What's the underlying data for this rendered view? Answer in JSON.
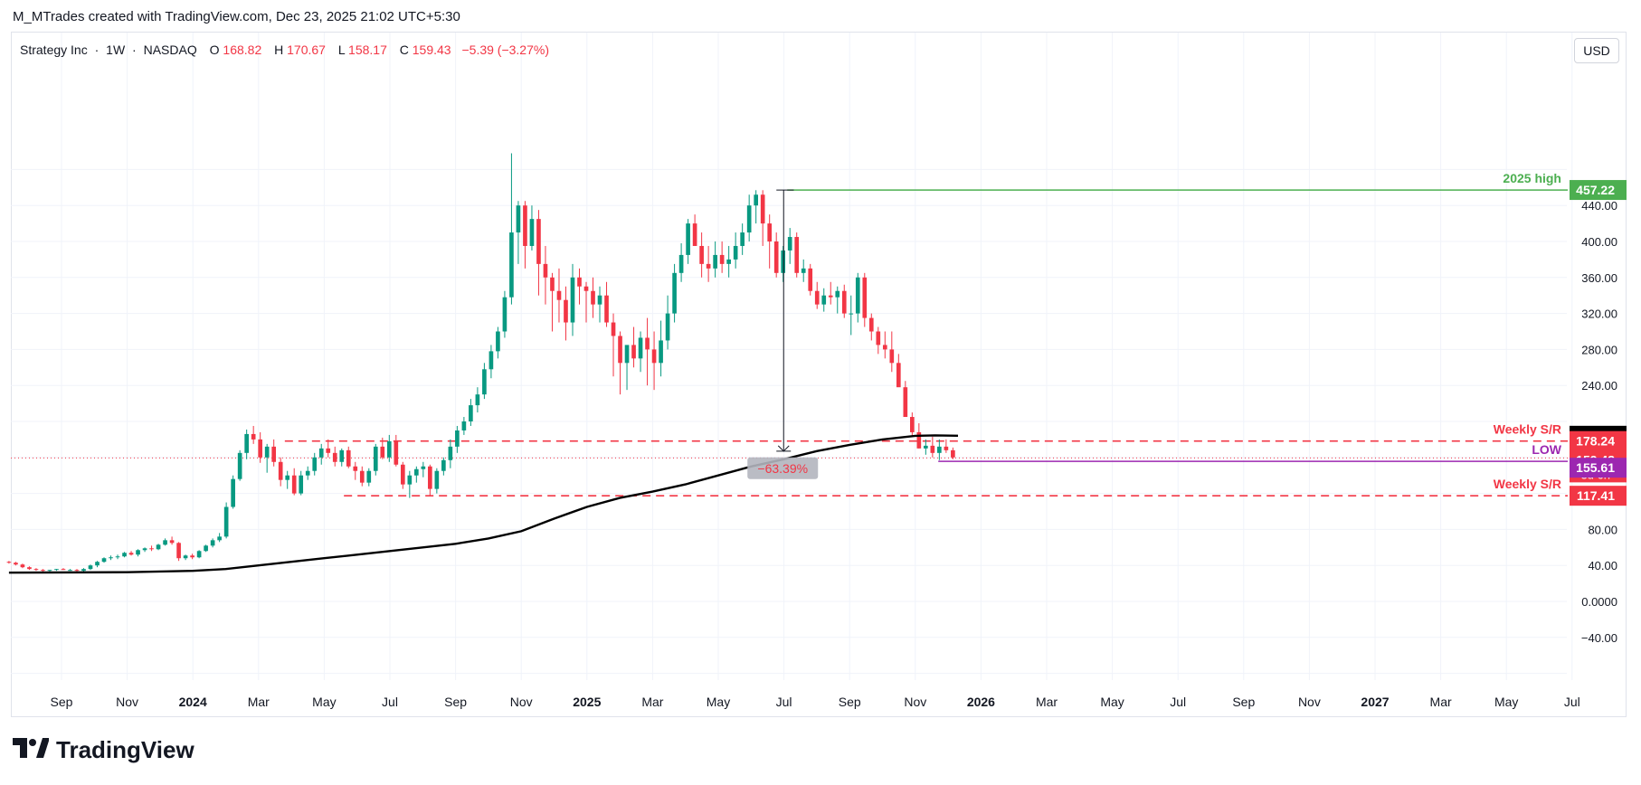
{
  "attribution": "M_MTrades created with TradingView.com, Dec 23, 2025 21:02 UTC+5:30",
  "symbol": {
    "name": "Strategy Inc",
    "sep1": "·",
    "interval": "1W",
    "sep2": "·",
    "exchange": "NASDAQ"
  },
  "ohlc": {
    "o_label": "O",
    "o": "168.82",
    "h_label": "H",
    "h": "170.67",
    "l_label": "L",
    "l": "158.17",
    "c_label": "C",
    "c": "159.43",
    "change": "−5.39 (−3.27%)"
  },
  "currency": "USD",
  "logo_text": "TradingView",
  "colors": {
    "up": "#089981",
    "down": "#f23645",
    "ma": "#000000",
    "high_line": "#4caf50",
    "low_line": "#9c27b0",
    "sr": "#f23645"
  },
  "chart_data": {
    "type": "candlestick",
    "y_ticks": [
      "440.00",
      "400.00",
      "360.00",
      "320.00",
      "280.00",
      "240.00",
      "80.00",
      "40.00",
      "0.0000",
      "−40.00"
    ],
    "y_tick_values": [
      440,
      400,
      360,
      320,
      280,
      240,
      80,
      40,
      0,
      -40
    ],
    "x_ticks": [
      {
        "label": "Sep",
        "t": 0.0,
        "bold": false
      },
      {
        "label": "Nov",
        "t": 2.0,
        "bold": false
      },
      {
        "label": "2024",
        "t": 4.0,
        "bold": true
      },
      {
        "label": "Mar",
        "t": 6.0,
        "bold": false
      },
      {
        "label": "May",
        "t": 8.0,
        "bold": false
      },
      {
        "label": "Jul",
        "t": 10.0,
        "bold": false
      },
      {
        "label": "Sep",
        "t": 12.0,
        "bold": false
      },
      {
        "label": "Nov",
        "t": 14.0,
        "bold": false
      },
      {
        "label": "2025",
        "t": 16.0,
        "bold": true
      },
      {
        "label": "Mar",
        "t": 18.0,
        "bold": false
      },
      {
        "label": "May",
        "t": 20.0,
        "bold": false
      },
      {
        "label": "Jul",
        "t": 22.0,
        "bold": false
      },
      {
        "label": "Sep",
        "t": 24.0,
        "bold": false
      },
      {
        "label": "Nov",
        "t": 26.0,
        "bold": false
      },
      {
        "label": "2026",
        "t": 28.0,
        "bold": true
      },
      {
        "label": "Mar",
        "t": 30.0,
        "bold": false
      },
      {
        "label": "May",
        "t": 32.0,
        "bold": false
      },
      {
        "label": "Jul",
        "t": 34.0,
        "bold": false
      },
      {
        "label": "Sep",
        "t": 36.0,
        "bold": false
      },
      {
        "label": "Nov",
        "t": 38.0,
        "bold": false
      },
      {
        "label": "2027",
        "t": 40.0,
        "bold": true
      },
      {
        "label": "Mar",
        "t": 42.0,
        "bold": false
      },
      {
        "label": "May",
        "t": 44.0,
        "bold": false
      },
      {
        "label": "Jul",
        "t": 46.0,
        "bold": false
      }
    ],
    "candles_ohlc": [
      [
        44,
        45,
        42,
        43
      ],
      [
        43,
        44,
        40,
        41
      ],
      [
        41,
        42,
        37,
        38
      ],
      [
        38,
        39,
        35,
        36
      ],
      [
        36,
        37,
        34,
        35
      ],
      [
        35,
        36,
        33,
        34
      ],
      [
        34,
        35,
        33,
        35
      ],
      [
        35,
        36,
        34,
        36
      ],
      [
        36,
        37,
        35,
        35
      ],
      [
        35,
        36,
        34,
        35
      ],
      [
        35,
        36,
        33,
        34
      ],
      [
        34,
        37,
        33,
        36
      ],
      [
        36,
        41,
        35,
        40
      ],
      [
        40,
        45,
        38,
        44
      ],
      [
        44,
        49,
        43,
        48
      ],
      [
        48,
        51,
        46,
        49
      ],
      [
        49,
        52,
        47,
        50
      ],
      [
        50,
        55,
        49,
        54
      ],
      [
        54,
        56,
        51,
        52
      ],
      [
        52,
        58,
        50,
        57
      ],
      [
        57,
        60,
        55,
        59
      ],
      [
        59,
        62,
        56,
        58
      ],
      [
        58,
        64,
        57,
        63
      ],
      [
        63,
        70,
        62,
        68
      ],
      [
        68,
        72,
        63,
        65
      ],
      [
        65,
        66,
        45,
        48
      ],
      [
        48,
        52,
        46,
        51
      ],
      [
        51,
        53,
        47,
        49
      ],
      [
        49,
        57,
        48,
        56
      ],
      [
        56,
        63,
        55,
        62
      ],
      [
        62,
        70,
        60,
        68
      ],
      [
        68,
        76,
        66,
        72
      ],
      [
        72,
        110,
        70,
        105
      ],
      [
        105,
        140,
        103,
        136
      ],
      [
        136,
        168,
        134,
        165
      ],
      [
        165,
        191,
        158,
        186
      ],
      [
        186,
        195,
        175,
        180
      ],
      [
        180,
        188,
        154,
        160
      ],
      [
        160,
        175,
        143,
        172
      ],
      [
        172,
        180,
        150,
        155
      ],
      [
        155,
        160,
        128,
        135
      ],
      [
        135,
        145,
        125,
        140
      ],
      [
        140,
        148,
        118,
        120
      ],
      [
        120,
        145,
        118,
        140
      ],
      [
        140,
        150,
        135,
        145
      ],
      [
        145,
        165,
        140,
        160
      ],
      [
        160,
        175,
        152,
        170
      ],
      [
        170,
        180,
        160,
        165
      ],
      [
        165,
        172,
        150,
        155
      ],
      [
        155,
        170,
        150,
        168
      ],
      [
        168,
        172,
        148,
        150
      ],
      [
        150,
        155,
        135,
        145
      ],
      [
        145,
        150,
        128,
        132
      ],
      [
        132,
        148,
        128,
        145
      ],
      [
        145,
        175,
        140,
        172
      ],
      [
        172,
        182,
        158,
        160
      ],
      [
        160,
        185,
        155,
        178
      ],
      [
        178,
        185,
        150,
        152
      ],
      [
        152,
        155,
        125,
        130
      ],
      [
        130,
        145,
        115,
        140
      ],
      [
        140,
        150,
        132,
        147
      ],
      [
        147,
        155,
        138,
        150
      ],
      [
        150,
        152,
        118,
        125
      ],
      [
        125,
        148,
        120,
        145
      ],
      [
        145,
        160,
        140,
        157
      ],
      [
        157,
        180,
        148,
        172
      ],
      [
        172,
        195,
        165,
        190
      ],
      [
        190,
        205,
        185,
        200
      ],
      [
        200,
        225,
        195,
        218
      ],
      [
        218,
        238,
        210,
        230
      ],
      [
        230,
        265,
        225,
        258
      ],
      [
        258,
        285,
        248,
        278
      ],
      [
        278,
        305,
        270,
        300
      ],
      [
        300,
        345,
        293,
        338
      ],
      [
        338,
        498,
        330,
        410
      ],
      [
        410,
        445,
        375,
        440
      ],
      [
        440,
        445,
        370,
        395
      ],
      [
        395,
        440,
        390,
        425
      ],
      [
        425,
        435,
        340,
        375
      ],
      [
        375,
        395,
        330,
        360
      ],
      [
        360,
        365,
        300,
        345
      ],
      [
        345,
        370,
        310,
        335
      ],
      [
        335,
        350,
        290,
        310
      ],
      [
        310,
        375,
        295,
        360
      ],
      [
        360,
        370,
        330,
        350
      ],
      [
        350,
        355,
        310,
        345
      ],
      [
        345,
        360,
        315,
        330
      ],
      [
        330,
        350,
        310,
        340
      ],
      [
        340,
        355,
        305,
        310
      ],
      [
        310,
        320,
        250,
        295
      ],
      [
        295,
        300,
        230,
        265
      ],
      [
        265,
        280,
        235,
        285
      ],
      [
        285,
        305,
        260,
        270
      ],
      [
        270,
        300,
        255,
        293
      ],
      [
        293,
        315,
        240,
        280
      ],
      [
        280,
        300,
        235,
        265
      ],
      [
        265,
        312,
        250,
        290
      ],
      [
        290,
        340,
        280,
        320
      ],
      [
        320,
        375,
        310,
        365
      ],
      [
        365,
        398,
        355,
        385
      ],
      [
        385,
        425,
        375,
        420
      ],
      [
        420,
        430,
        400,
        395
      ],
      [
        395,
        410,
        360,
        375
      ],
      [
        375,
        395,
        355,
        370
      ],
      [
        370,
        400,
        360,
        385
      ],
      [
        385,
        400,
        365,
        375
      ],
      [
        375,
        395,
        360,
        380
      ],
      [
        380,
        410,
        370,
        395
      ],
      [
        395,
        420,
        385,
        410
      ],
      [
        410,
        452,
        400,
        440
      ],
      [
        440,
        457,
        420,
        452
      ],
      [
        452,
        457,
        395,
        420
      ],
      [
        420,
        430,
        370,
        400
      ],
      [
        400,
        410,
        360,
        365
      ],
      [
        365,
        395,
        355,
        390
      ],
      [
        390,
        415,
        375,
        405
      ],
      [
        405,
        410,
        360,
        365
      ],
      [
        365,
        380,
        355,
        370
      ],
      [
        370,
        375,
        340,
        345
      ],
      [
        345,
        355,
        325,
        330
      ],
      [
        330,
        348,
        322,
        340
      ],
      [
        340,
        355,
        330,
        338
      ],
      [
        338,
        350,
        320,
        345
      ],
      [
        345,
        352,
        315,
        320
      ],
      [
        320,
        340,
        296,
        320
      ],
      [
        320,
        365,
        310,
        360
      ],
      [
        360,
        365,
        305,
        315
      ],
      [
        315,
        320,
        290,
        300
      ],
      [
        300,
        305,
        275,
        285
      ],
      [
        285,
        300,
        270,
        280
      ],
      [
        280,
        300,
        255,
        265
      ],
      [
        265,
        275,
        240,
        238
      ],
      [
        238,
        245,
        208,
        205
      ],
      [
        205,
        210,
        183,
        188
      ],
      [
        188,
        198,
        170,
        170
      ],
      [
        170,
        180,
        163,
        173
      ],
      [
        173,
        183,
        160,
        165
      ],
      [
        165,
        180,
        157,
        172
      ],
      [
        172,
        180,
        165,
        168
      ],
      [
        168,
        171,
        158,
        160
      ]
    ],
    "candle_t_start": -1.6,
    "candle_t_step": 0.2068,
    "ma_points": [
      [
        -1.6,
        32
      ],
      [
        2,
        32.5
      ],
      [
        4,
        34
      ],
      [
        5,
        36
      ],
      [
        6,
        40
      ],
      [
        7,
        44
      ],
      [
        8,
        48
      ],
      [
        9,
        52
      ],
      [
        10,
        56
      ],
      [
        11,
        60
      ],
      [
        12,
        64
      ],
      [
        13,
        70
      ],
      [
        14,
        78
      ],
      [
        15,
        92
      ],
      [
        16,
        105
      ],
      [
        17,
        115
      ],
      [
        18,
        122
      ],
      [
        19,
        130
      ],
      [
        20,
        140
      ],
      [
        21,
        150
      ],
      [
        22,
        158
      ],
      [
        23,
        167
      ],
      [
        24,
        174
      ],
      [
        25,
        180
      ],
      [
        26,
        184
      ],
      [
        26.6,
        184.5
      ],
      [
        27.3,
        184.09
      ]
    ],
    "drawdown_label": "−63.39%",
    "levels": [
      {
        "name": "2025 high",
        "label": "2025 high",
        "value": 457.22,
        "price": "457.22",
        "bg": "#4caf50",
        "style": "solid",
        "t_from": 22.1,
        "t_to": 48.0
      },
      {
        "name": "MA",
        "label": "",
        "value": 184.09,
        "price": "184.09",
        "bg": "#000000",
        "style": "none"
      },
      {
        "name": "Weekly S/R",
        "label": "Weekly S/R",
        "value": 178.24,
        "price": "178.24",
        "bg": "#f23645",
        "style": "dashed",
        "t_from": 6.8,
        "t_to": 48.0
      },
      {
        "name": "Current",
        "label": "",
        "value": 159.43,
        "price": "159.43",
        "bg": "#f23645",
        "style": "dotted",
        "sub": "3d 6h"
      },
      {
        "name": "LOW",
        "label": "LOW",
        "value": 155.61,
        "price": "155.61",
        "bg": "#9c27b0",
        "style": "solid",
        "t_from": 26.7,
        "t_to": 48.0
      },
      {
        "name": "Weekly S/R 2",
        "label": "Weekly S/R",
        "value": 117.41,
        "price": "117.41",
        "bg": "#f23645",
        "style": "dashed",
        "t_from": 8.6,
        "t_to": 48.0
      }
    ]
  }
}
